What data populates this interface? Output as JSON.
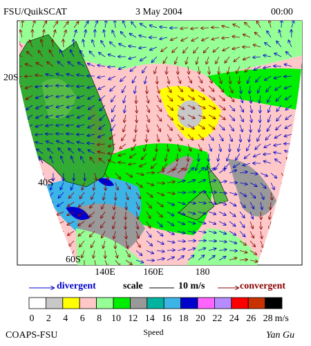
{
  "header": {
    "source": "FSU/QuikSCAT",
    "date": "3 May 2004",
    "time": "00:00"
  },
  "map": {
    "lat_labels": [
      "20S",
      "40S",
      "60S"
    ],
    "lon_labels": [
      "140E",
      "160E",
      "180"
    ]
  },
  "legend": {
    "divergent": "divergent",
    "scale": "scale",
    "scale_value": "10 m/s",
    "convergent": "convergent"
  },
  "speed_scale": {
    "ticks": [
      0,
      2,
      4,
      6,
      8,
      10,
      12,
      14,
      16,
      18,
      20,
      22,
      24,
      26,
      28
    ],
    "unit": "m/s",
    "label": "Speed",
    "colors": [
      "#ffffff",
      "#c8c8c8",
      "#ffff00",
      "#ffc8c8",
      "#96ff96",
      "#00ee00",
      "#999999",
      "#00b4a0",
      "#3cb4e6",
      "#0000cc",
      "#ff64ff",
      "#b48cff",
      "#ff0000",
      "#c83200",
      "#000000"
    ]
  },
  "footer": {
    "left": "COAPS-FSU",
    "right": "Yan Gu"
  }
}
